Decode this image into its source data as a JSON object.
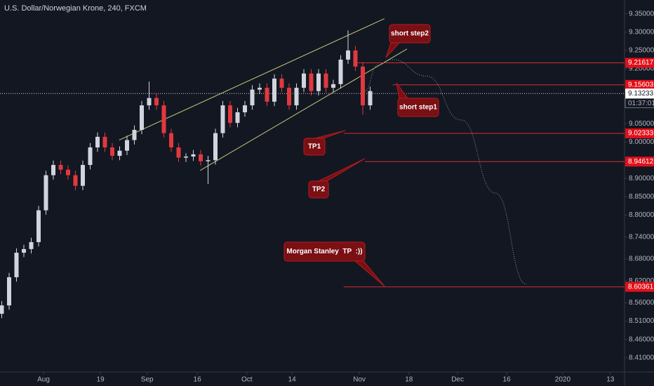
{
  "chart_data": {
    "type": "candlestick",
    "title": "U.S. Dollar/Norwegian Krone, 240, FXCM",
    "up_color": "#d1d4dc",
    "down_color": "#e0393e",
    "x": [
      -8.5,
      -7,
      -5.5,
      -4,
      -2.5,
      -1,
      0.5,
      2,
      3.5,
      5,
      6.5,
      8,
      9.5,
      11,
      12.5,
      14,
      15.5,
      17,
      18.5,
      20,
      21.5,
      23,
      24.5,
      26,
      27.5,
      29,
      30.5,
      32,
      33.5,
      35,
      36.5,
      38,
      39.5,
      41,
      42.5,
      44,
      45.5,
      47,
      48.5,
      50,
      51.5,
      53,
      54.5,
      56,
      57.5,
      59,
      60.5,
      62,
      63.5,
      65,
      66.5
    ],
    "open": [
      8.53,
      8.553,
      8.63,
      8.697,
      8.707,
      8.726,
      8.813,
      8.909,
      8.937,
      8.924,
      8.909,
      8.88,
      8.937,
      8.985,
      9.014,
      8.985,
      8.962,
      8.976,
      9.005,
      9.033,
      9.1,
      9.12,
      9.1,
      9.024,
      8.985,
      8.957,
      8.96,
      8.966,
      8.947,
      8.95,
      9.024,
      9.1,
      9.052,
      9.081,
      9.1,
      9.143,
      9.148,
      9.11,
      9.173,
      9.148,
      9.1,
      9.148,
      9.187,
      9.139,
      9.187,
      9.148,
      9.158,
      9.225,
      9.25,
      9.206,
      9.1
    ],
    "high": [
      8.565,
      8.642,
      8.709,
      8.719,
      8.738,
      8.825,
      8.921,
      8.949,
      8.949,
      8.936,
      8.921,
      8.949,
      8.997,
      9.026,
      9.026,
      8.997,
      8.988,
      9.017,
      9.045,
      9.112,
      9.165,
      9.132,
      9.112,
      9.036,
      8.997,
      8.969,
      8.978,
      8.978,
      8.962,
      9.036,
      9.112,
      9.112,
      9.093,
      9.112,
      9.155,
      9.16,
      9.16,
      9.185,
      9.185,
      9.16,
      9.16,
      9.199,
      9.199,
      9.199,
      9.199,
      9.17,
      9.237,
      9.305,
      9.262,
      9.218,
      9.151
    ],
    "low": [
      8.518,
      8.541,
      8.618,
      8.685,
      8.695,
      8.714,
      8.801,
      8.897,
      8.912,
      8.897,
      8.868,
      8.868,
      8.925,
      8.973,
      8.973,
      8.95,
      8.95,
      8.964,
      8.993,
      9.021,
      9.088,
      9.088,
      9.012,
      8.973,
      8.945,
      8.945,
      8.948,
      8.935,
      8.885,
      8.938,
      9.012,
      9.04,
      9.04,
      9.069,
      9.088,
      9.131,
      9.098,
      9.098,
      9.136,
      9.088,
      9.088,
      9.136,
      9.127,
      9.127,
      9.136,
      9.136,
      9.146,
      9.213,
      9.194,
      9.075,
      9.088
    ],
    "close": [
      8.553,
      8.63,
      8.697,
      8.707,
      8.726,
      8.813,
      8.909,
      8.937,
      8.924,
      8.909,
      8.88,
      8.937,
      8.985,
      9.014,
      8.985,
      8.962,
      8.976,
      9.005,
      9.033,
      9.1,
      9.12,
      9.1,
      9.024,
      8.985,
      8.957,
      8.96,
      8.966,
      8.947,
      8.95,
      9.024,
      9.1,
      9.052,
      9.081,
      9.1,
      9.143,
      9.148,
      9.11,
      9.173,
      9.148,
      9.1,
      9.148,
      9.187,
      9.139,
      9.187,
      9.148,
      9.158,
      9.225,
      9.25,
      9.206,
      9.1,
      9.139
    ],
    "xlim": [
      -8.857,
      118.286
    ],
    "ylim": [
      8.371,
      9.388
    ],
    "xticks": [
      {
        "value": 0,
        "label": "Aug"
      },
      {
        "value": 11.6,
        "label": "19"
      },
      {
        "value": 21.1,
        "label": "Sep"
      },
      {
        "value": 31.3,
        "label": "16"
      },
      {
        "value": 41.4,
        "label": "Oct"
      },
      {
        "value": 50.6,
        "label": "14"
      },
      {
        "value": 64.3,
        "label": "Nov"
      },
      {
        "value": 74.4,
        "label": "18"
      },
      {
        "value": 84.3,
        "label": "Dec"
      },
      {
        "value": 94.3,
        "label": "16"
      },
      {
        "value": 105.7,
        "label": "2020"
      },
      {
        "value": 115.4,
        "label": "13"
      }
    ],
    "yticks": [
      {
        "value": 9.35,
        "label": "9.35000"
      },
      {
        "value": 9.3,
        "label": "9.30000"
      },
      {
        "value": 9.25,
        "label": "9.25000"
      },
      {
        "value": 9.2,
        "label": "9.20000"
      },
      {
        "value": 9.05,
        "label": "9.05000"
      },
      {
        "value": 9.0,
        "label": "9.00000"
      },
      {
        "value": 8.9,
        "label": "8.90000"
      },
      {
        "value": 8.85,
        "label": "8.85000"
      },
      {
        "value": 8.8,
        "label": "8.80000"
      },
      {
        "value": 8.74,
        "label": "8.74000"
      },
      {
        "value": 8.68,
        "label": "8.68000"
      },
      {
        "value": 8.62,
        "label": "8.62000"
      },
      {
        "value": 8.56,
        "label": "8.56000"
      },
      {
        "value": 8.51,
        "label": "8.51000"
      },
      {
        "value": 8.46,
        "label": "8.46000"
      },
      {
        "value": 8.41,
        "label": "8.41000"
      }
    ],
    "current_price": 9.13233,
    "countdown": "01:37:01",
    "levels": [
      {
        "value": 9.21617,
        "from": 64.0
      },
      {
        "value": 9.15603,
        "from": 71.1
      },
      {
        "value": 9.02333,
        "from": 61.1
      },
      {
        "value": 8.94612,
        "from": 65.4
      },
      {
        "value": 8.60361,
        "from": 61.1
      }
    ],
    "channel": [
      {
        "x": [
          15.4,
          69.4
        ],
        "y": [
          9.005,
          9.337
        ]
      },
      {
        "x": [
          31.9,
          74.0
        ],
        "y": [
          8.922,
          9.254
        ]
      }
    ],
    "channel_color": "#c8c878",
    "projection": {
      "x": [
        65.4,
        68,
        71.1,
        78,
        85,
        92,
        98.3
      ],
      "y": [
        9.139,
        9.21,
        9.225,
        9.18,
        9.06,
        8.86,
        8.611
      ]
    },
    "annotations": [
      "short step2",
      "short step1",
      "TP1",
      "TP2",
      "Morgan Stanley  TP  :))"
    ]
  }
}
